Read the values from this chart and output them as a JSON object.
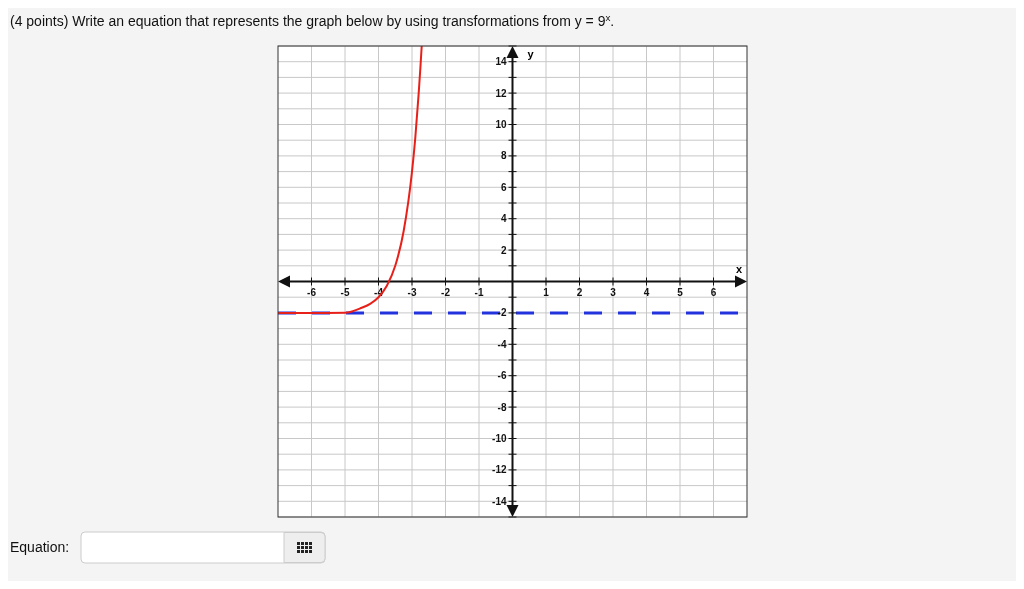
{
  "chart_data": {
    "type": "line",
    "title": "(4 points) Write an equation that represents the graph below by using transformations from y = 9$^{x}$.",
    "xlabel": "x",
    "ylabel": "y",
    "xlim": [
      -7,
      7
    ],
    "ylim": [
      -15,
      15
    ],
    "xticks": [
      -6,
      -5,
      -4,
      -3,
      -2,
      -1,
      1,
      2,
      3,
      4,
      5,
      6
    ],
    "yticks": [
      {
        "value": -15,
        "label": null
      },
      -14,
      {
        "value": -13,
        "label": null
      },
      -12,
      {
        "value": -11,
        "label": null
      },
      -10,
      {
        "value": -9,
        "label": null
      },
      -8,
      {
        "value": -7,
        "label": null
      },
      -6,
      {
        "value": -5,
        "label": null
      },
      -4,
      {
        "value": -3,
        "label": null
      },
      -2,
      {
        "value": -1,
        "label": null
      },
      {
        "value": 1,
        "label": null
      },
      2,
      {
        "value": 3,
        "label": null
      },
      4,
      {
        "value": 5,
        "label": null
      },
      6,
      {
        "value": 7,
        "label": null
      },
      8,
      {
        "value": 9,
        "label": null
      },
      10,
      {
        "value": 11,
        "label": null
      },
      12,
      {
        "value": 13,
        "label": null
      },
      14,
      {
        "value": 15,
        "label": null
      }
    ],
    "grid": true,
    "marker": "none",
    "line_style": "solid",
    "series": [
      {
        "color": "#e8201a",
        "x": [
          -7,
          -6,
          -5,
          -4.5,
          -4.25,
          -4,
          -3.75,
          -3.5,
          -3.25,
          -3,
          -2.9,
          -2.8,
          -2.75,
          -2.71
        ],
        "values": [
          -2,
          -2,
          -1.99,
          -1.67,
          -1.42,
          -1,
          -0.27,
          1,
          3.2,
          7,
          9.2,
          12,
          13.6,
          15
        ]
      }
    ],
    "ref_lines": [
      {
        "axis": "y",
        "value": -2,
        "color": "#2233dd",
        "line_style": "dashed"
      }
    ],
    "annotations": [
      "Equation:"
    ]
  }
}
